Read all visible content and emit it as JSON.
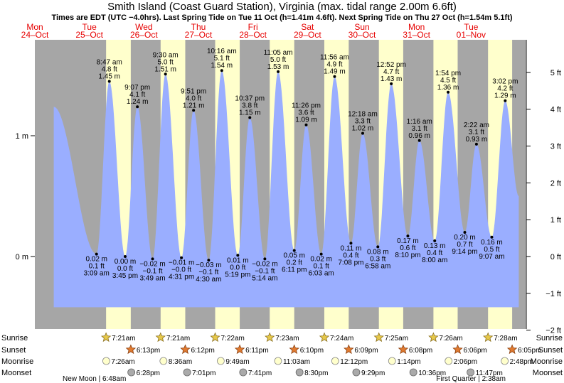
{
  "chart_data": {
    "type": "area",
    "title": "Smith Island (Coast Guard Station), Virginia (max. tidal range 2.00m 6.6ft)",
    "subtitle": "Times are EDT (UTC −4.0hrs). Last Spring Tide on Tue 11 Oct (h=1.41m 4.6ft). Next Spring Tide on Thu 27 Oct (h=1.54m 5.1ft)",
    "x_unit": "hours from Mon 24 Oct 00:00",
    "x_range": [
      0,
      216
    ],
    "y_left": {
      "unit": "m",
      "range": [
        -0.6,
        1.8
      ],
      "ticks": [
        {
          "v": 0,
          "label": "0 m"
        },
        {
          "v": 1,
          "label": "1 m"
        }
      ]
    },
    "y_right": {
      "unit": "ft",
      "ticks": [
        {
          "ft": 5,
          "label": "5 ft"
        },
        {
          "ft": 4,
          "label": "4 ft"
        },
        {
          "ft": 3,
          "label": "3 ft"
        },
        {
          "ft": 2,
          "label": "2 ft"
        },
        {
          "ft": 1,
          "label": "1 ft"
        },
        {
          "ft": 0,
          "label": "0 ft"
        },
        {
          "ft": -1,
          "label": "−1 ft"
        },
        {
          "ft": -2,
          "label": "−2 ft"
        }
      ]
    },
    "days": [
      {
        "dow": "Mon",
        "date": "24–Oct",
        "weekend": false
      },
      {
        "dow": "Tue",
        "date": "25–Oct",
        "weekend": false
      },
      {
        "dow": "Wed",
        "date": "26–Oct",
        "weekend": false
      },
      {
        "dow": "Thu",
        "date": "27–Oct",
        "weekend": false
      },
      {
        "dow": "Fri",
        "date": "28–Oct",
        "weekend": false
      },
      {
        "dow": "Sat",
        "date": "29–Oct",
        "weekend": true
      },
      {
        "dow": "Sun",
        "date": "30–Oct",
        "weekend": true
      },
      {
        "dow": "Mon",
        "date": "31–Oct",
        "weekend": false
      },
      {
        "dow": "Tue",
        "date": "01–Nov",
        "weekend": false
      }
    ],
    "daylight": [
      {
        "rise": 31.35,
        "set": 42.22
      },
      {
        "rise": 55.35,
        "set": 66.2
      },
      {
        "rise": 79.37,
        "set": 90.18
      },
      {
        "rise": 103.38,
        "set": 114.17
      },
      {
        "rise": 127.4,
        "set": 138.15
      },
      {
        "rise": 151.42,
        "set": 162.13
      },
      {
        "rise": 175.43,
        "set": 186.1
      },
      {
        "rise": 199.47,
        "set": 210.08
      }
    ],
    "tides": [
      {
        "t": 8.33,
        "m": 1.24,
        "type": "high",
        "labels": []
      },
      {
        "t": 27.15,
        "m": 0.02,
        "type": "low",
        "labels": [
          "0.02 m",
          "0.1 ft",
          "3:09 am"
        ]
      },
      {
        "t": 32.78,
        "m": 1.45,
        "type": "high",
        "labels": [
          "8:47 am",
          "4.8 ft",
          "1.45 m"
        ]
      },
      {
        "t": 39.75,
        "m": 0.0,
        "type": "low",
        "labels": [
          "0.00 m",
          "0.0 ft",
          "3:45 pm"
        ]
      },
      {
        "t": 45.12,
        "m": 1.24,
        "type": "high",
        "labels": [
          "9:07 pm",
          "4.1 ft",
          "1.24 m"
        ]
      },
      {
        "t": 51.82,
        "m": -0.02,
        "type": "low",
        "labels": [
          "−0.02 m",
          "−0.1 ft",
          "3:49 am"
        ]
      },
      {
        "t": 57.5,
        "m": 1.51,
        "type": "high",
        "labels": [
          "9:30 am",
          "5.0 ft",
          "1.51 m"
        ]
      },
      {
        "t": 64.52,
        "m": -0.01,
        "type": "low",
        "labels": [
          "−0.01 m",
          "−0.0 ft",
          "4:31 pm"
        ]
      },
      {
        "t": 69.85,
        "m": 1.21,
        "type": "high",
        "labels": [
          "9:51 pm",
          "4.0 ft",
          "1.21 m"
        ]
      },
      {
        "t": 76.5,
        "m": -0.03,
        "type": "low",
        "labels": [
          "−0.03 m",
          "−0.1 ft",
          "4:30 am"
        ]
      },
      {
        "t": 82.27,
        "m": 1.54,
        "type": "high",
        "labels": [
          "10:16 am",
          "5.1 ft",
          "1.54 m"
        ]
      },
      {
        "t": 89.32,
        "m": 0.01,
        "type": "low",
        "labels": [
          "0.01 m",
          "0.0 ft",
          "5:19 pm"
        ]
      },
      {
        "t": 94.62,
        "m": 1.15,
        "type": "high",
        "labels": [
          "10:37 pm",
          "3.8 ft",
          "1.15 m"
        ]
      },
      {
        "t": 101.23,
        "m": -0.02,
        "type": "low",
        "labels": [
          "−0.02 m",
          "−0.1 ft",
          "5:14 am"
        ]
      },
      {
        "t": 107.08,
        "m": 1.53,
        "type": "high",
        "labels": [
          "11:05 am",
          "5.0 ft",
          "1.53 m"
        ]
      },
      {
        "t": 114.18,
        "m": 0.05,
        "type": "low",
        "labels": [
          "0.05 m",
          "0.2 ft",
          "6:11 pm"
        ]
      },
      {
        "t": 119.43,
        "m": 1.09,
        "type": "high",
        "labels": [
          "11:26 pm",
          "3.6 ft",
          "1.09 m"
        ]
      },
      {
        "t": 126.05,
        "m": 0.02,
        "type": "low",
        "labels": [
          "0.02 m",
          "0.1 ft",
          "6:03 am"
        ]
      },
      {
        "t": 131.93,
        "m": 1.49,
        "type": "high",
        "labels": [
          "11:56 am",
          "4.9 ft",
          "1.49 m"
        ]
      },
      {
        "t": 139.13,
        "m": 0.11,
        "type": "low",
        "labels": [
          "0.11 m",
          "0.4 ft",
          "7:08 pm"
        ]
      },
      {
        "t": 144.3,
        "m": 1.02,
        "type": "high",
        "labels": [
          "12:18 am",
          "3.3 ft",
          "1.02 m"
        ]
      },
      {
        "t": 150.97,
        "m": 0.08,
        "type": "low",
        "labels": [
          "0.08 m",
          "0.3 ft",
          "6:58 am"
        ]
      },
      {
        "t": 156.87,
        "m": 1.43,
        "type": "high",
        "labels": [
          "12:52 pm",
          "4.7 ft",
          "1.43 m"
        ]
      },
      {
        "t": 164.17,
        "m": 0.17,
        "type": "low",
        "labels": [
          "0.17 m",
          "0.6 ft",
          "8:10 pm"
        ]
      },
      {
        "t": 169.27,
        "m": 0.96,
        "type": "high",
        "labels": [
          "1:16 am",
          "3.1 ft",
          "0.96 m"
        ]
      },
      {
        "t": 176.0,
        "m": 0.13,
        "type": "low",
        "labels": [
          "0.13 m",
          "0.4 ft",
          "8:00 am"
        ]
      },
      {
        "t": 181.9,
        "m": 1.36,
        "type": "high",
        "labels": [
          "1:54 pm",
          "4.5 ft",
          "1.36 m"
        ]
      },
      {
        "t": 189.23,
        "m": 0.2,
        "type": "low",
        "labels": [
          "0.20 m",
          "0.7 ft",
          "9:14 pm"
        ]
      },
      {
        "t": 194.37,
        "m": 0.93,
        "type": "high",
        "labels": [
          "2:22 am",
          "3.1 ft",
          "0.93 m"
        ]
      },
      {
        "t": 201.12,
        "m": 0.16,
        "type": "low",
        "labels": [
          "0.16 m",
          "0.5 ft",
          "9:07 am"
        ]
      },
      {
        "t": 207.03,
        "m": 1.29,
        "type": "high",
        "labels": [
          "3:02 pm",
          "4.2 ft",
          "1.29 m"
        ]
      },
      {
        "t": 213.0,
        "m": 0.5,
        "type": "mid",
        "labels": []
      }
    ],
    "row_labels": {
      "left": [
        "Sunrise",
        "Sunset",
        "Moonrise",
        "Moonset"
      ],
      "right": [
        "Sunrise",
        "Sunset",
        "Moonrise",
        "Moonset"
      ]
    },
    "sunrise": [
      {
        "t": 31.35,
        "label": "7:21am"
      },
      {
        "t": 55.35,
        "label": "7:21am"
      },
      {
        "t": 79.37,
        "label": "7:22am"
      },
      {
        "t": 103.38,
        "label": "7:23am"
      },
      {
        "t": 127.4,
        "label": "7:24am"
      },
      {
        "t": 151.42,
        "label": "7:25am"
      },
      {
        "t": 175.43,
        "label": "7:26am"
      },
      {
        "t": 199.47,
        "label": "7:28am"
      }
    ],
    "sunset": [
      {
        "t": 42.22,
        "label": "6:13pm"
      },
      {
        "t": 66.2,
        "label": "6:12pm"
      },
      {
        "t": 90.18,
        "label": "6:11pm"
      },
      {
        "t": 114.17,
        "label": "6:10pm"
      },
      {
        "t": 138.15,
        "label": "6:09pm"
      },
      {
        "t": 162.13,
        "label": "6:08pm"
      },
      {
        "t": 186.1,
        "label": "6:06pm"
      },
      {
        "t": 210.08,
        "label": "6:05pm"
      }
    ],
    "moonrise": [
      {
        "t": 31.43,
        "label": "7:26am"
      },
      {
        "t": 56.6,
        "label": "8:36am"
      },
      {
        "t": 81.82,
        "label": "9:49am"
      },
      {
        "t": 107.05,
        "label": "11:03am"
      },
      {
        "t": 132.2,
        "label": "12:12pm"
      },
      {
        "t": 157.23,
        "label": "1:14pm"
      },
      {
        "t": 182.1,
        "label": "2:06pm"
      },
      {
        "t": 206.8,
        "label": "2:48pm"
      }
    ],
    "moonset": [
      {
        "t": 42.47,
        "label": "6:28pm"
      },
      {
        "t": 67.02,
        "label": "7:01pm"
      },
      {
        "t": 91.68,
        "label": "7:41pm"
      },
      {
        "t": 116.5,
        "label": "8:30pm"
      },
      {
        "t": 141.48,
        "label": "9:29pm"
      },
      {
        "t": 166.6,
        "label": "10:36pm"
      },
      {
        "t": 191.78,
        "label": "11:47pm"
      }
    ],
    "moon_phases": [
      {
        "label": "New Moon | 6:48am",
        "anchor": "left"
      },
      {
        "label": "First Quarter | 2:38am",
        "anchor": "right"
      }
    ]
  }
}
